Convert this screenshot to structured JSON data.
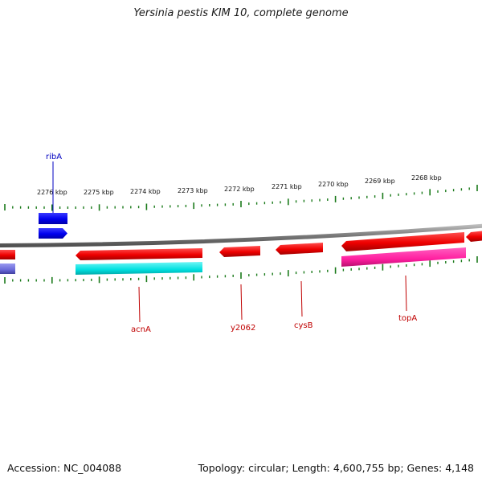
{
  "title": "Yersinia pestis KIM 10, complete genome",
  "footer": {
    "accession": "Accession: NC_004088",
    "summary": "Topology: circular; Length: 4,600,755 bp; Genes: 4,148"
  },
  "scale_labels": [
    "2276 kbp",
    "2275 kbp",
    "2274 kbp",
    "2273 kbp",
    "2272 kbp",
    "2271 kbp",
    "2270 kbp",
    "2269 kbp",
    "2268 kbp"
  ],
  "genes": [
    {
      "name": "ribA",
      "color": "#0000ff",
      "label_color": "#0000c0"
    },
    {
      "name": "acnA",
      "color": "#ff0000",
      "label_color": "#c00000"
    },
    {
      "name": "y2062",
      "color": "#ff0000",
      "label_color": "#c00000"
    },
    {
      "name": "cysB",
      "color": "#ff0000",
      "label_color": "#c00000"
    },
    {
      "name": "topA",
      "color": "#ff0000",
      "label_color": "#c00000"
    }
  ],
  "colors": {
    "backbone": "#8c8c8c",
    "ticks": "#1a7a1a",
    "cds_forward": "#0000ee",
    "cds_reverse": "#ee0000",
    "rna_cyan": "#00e5e5",
    "rna_magenta": "#ff1fa0",
    "rna_slate": "#6a6ad8"
  }
}
